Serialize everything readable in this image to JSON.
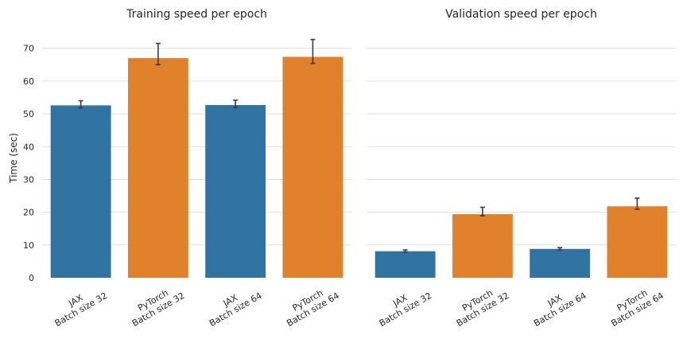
{
  "chart_data": [
    {
      "type": "bar",
      "title": "Training speed per epoch",
      "xlabel": "",
      "ylabel": "Time (sec)",
      "ylim": [
        0,
        76
      ],
      "yticks": [
        0,
        10,
        20,
        30,
        40,
        50,
        60,
        70
      ],
      "grid": true,
      "categories": [
        [
          "JAX",
          "Batch size 32"
        ],
        [
          "PyTorch",
          "Batch size 32"
        ],
        [
          "JAX",
          "Batch size 64"
        ],
        [
          "PyTorch",
          "Batch size 64"
        ]
      ],
      "values": [
        52.6,
        67.0,
        52.7,
        67.4
      ],
      "error_low": [
        51.8,
        65.0,
        51.9,
        65.4
      ],
      "error_high": [
        54.0,
        71.5,
        54.2,
        72.7
      ],
      "colors": [
        "#3274a1",
        "#e1812c",
        "#3274a1",
        "#e1812c"
      ]
    },
    {
      "type": "bar",
      "title": "Validation speed per epoch",
      "xlabel": "",
      "ylabel": "",
      "ylim": [
        0,
        76
      ],
      "yticks": [
        0,
        10,
        20,
        30,
        40,
        50,
        60,
        70
      ],
      "grid": true,
      "categories": [
        [
          "JAX",
          "Batch size 32"
        ],
        [
          "PyTorch",
          "Batch size 32"
        ],
        [
          "JAX",
          "Batch size 64"
        ],
        [
          "PyTorch",
          "Batch size 64"
        ]
      ],
      "values": [
        8.1,
        19.4,
        8.8,
        21.8
      ],
      "error_low": [
        7.8,
        18.9,
        8.5,
        20.9
      ],
      "error_high": [
        8.5,
        21.5,
        9.2,
        24.3
      ],
      "colors": [
        "#3274a1",
        "#e1812c",
        "#3274a1",
        "#e1812c"
      ]
    }
  ]
}
